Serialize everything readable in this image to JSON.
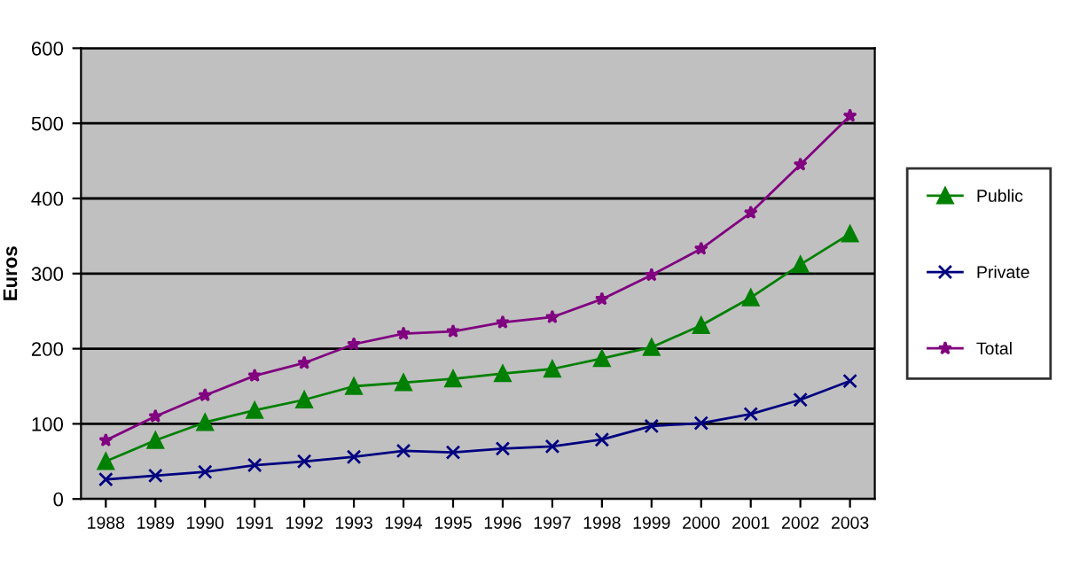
{
  "chart_data": {
    "type": "line",
    "ylabel": "Euros",
    "categories": [
      "1988",
      "1989",
      "1990",
      "1991",
      "1992",
      "1993",
      "1994",
      "1995",
      "1996",
      "1997",
      "1998",
      "1999",
      "2000",
      "2001",
      "2002",
      "2003"
    ],
    "series": [
      {
        "name": "Public",
        "color": "#008000",
        "marker": "triangle",
        "values": [
          50,
          78,
          102,
          118,
          132,
          150,
          155,
          160,
          167,
          173,
          187,
          202,
          231,
          268,
          312,
          353
        ]
      },
      {
        "name": "Private",
        "color": "#000080",
        "marker": "cross",
        "values": [
          26,
          31,
          36,
          45,
          50,
          56,
          64,
          62,
          67,
          70,
          79,
          97,
          101,
          113,
          132,
          157
        ]
      },
      {
        "name": "Total",
        "color": "#800080",
        "marker": "star",
        "values": [
          78,
          110,
          138,
          164,
          181,
          206,
          220,
          223,
          235,
          242,
          266,
          298,
          333,
          381,
          445,
          510
        ]
      }
    ],
    "ylim": [
      0,
      600
    ],
    "yticks": [
      0,
      100,
      200,
      300,
      400,
      500,
      600
    ],
    "grid": "y",
    "legend": "right",
    "line_style": "solid"
  }
}
